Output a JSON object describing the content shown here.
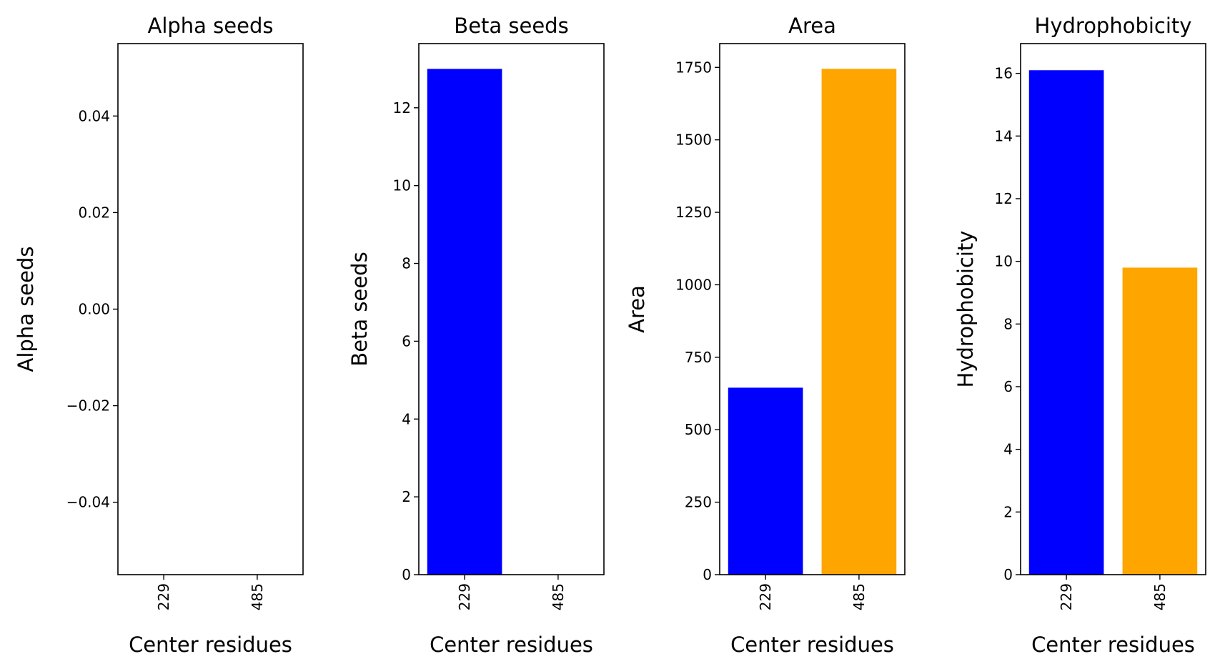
{
  "figure": {
    "background": "#ffffff"
  },
  "chart_data": [
    {
      "type": "bar",
      "title": "Alpha seeds",
      "xlabel": "Center residues",
      "ylabel": "Alpha seeds",
      "categories": [
        "229",
        "485"
      ],
      "values": [
        0,
        0
      ],
      "colors": [
        "#0000ff",
        "#ffa500"
      ],
      "ylim": [
        -0.055,
        0.055
      ],
      "yticks": [
        -0.04,
        -0.02,
        0.0,
        0.02,
        0.04
      ],
      "ytick_labels": [
        "−0.04",
        "−0.02",
        "0.00",
        "0.02",
        "0.04"
      ],
      "grid": false
    },
    {
      "type": "bar",
      "title": "Beta seeds",
      "xlabel": "Center residues",
      "ylabel": "Beta seeds",
      "categories": [
        "229",
        "485"
      ],
      "values": [
        13,
        0
      ],
      "colors": [
        "#0000ff",
        "#ffa500"
      ],
      "ylim": [
        0,
        13.65
      ],
      "yticks": [
        0,
        2,
        4,
        6,
        8,
        10,
        12
      ],
      "ytick_labels": [
        "0",
        "2",
        "4",
        "6",
        "8",
        "10",
        "12"
      ],
      "grid": false
    },
    {
      "type": "bar",
      "title": "Area",
      "xlabel": "Center residues",
      "ylabel": "Area",
      "categories": [
        "229",
        "485"
      ],
      "values": [
        645,
        1745
      ],
      "colors": [
        "#0000ff",
        "#ffa500"
      ],
      "ylim": [
        0,
        1832
      ],
      "yticks": [
        0,
        250,
        500,
        750,
        1000,
        1250,
        1500,
        1750
      ],
      "ytick_labels": [
        "0",
        "250",
        "500",
        "750",
        "1000",
        "1250",
        "1500",
        "1750"
      ],
      "grid": false
    },
    {
      "type": "bar",
      "title": "Hydrophobicity",
      "xlabel": "Center residues",
      "ylabel": "Hydrophobicity",
      "categories": [
        "229",
        "485"
      ],
      "values": [
        16.1,
        9.8
      ],
      "colors": [
        "#0000ff",
        "#ffa500"
      ],
      "ylim": [
        0,
        16.95
      ],
      "yticks": [
        0,
        2,
        4,
        6,
        8,
        10,
        12,
        14,
        16
      ],
      "ytick_labels": [
        "0",
        "2",
        "4",
        "6",
        "8",
        "10",
        "12",
        "14",
        "16"
      ],
      "grid": false
    }
  ]
}
